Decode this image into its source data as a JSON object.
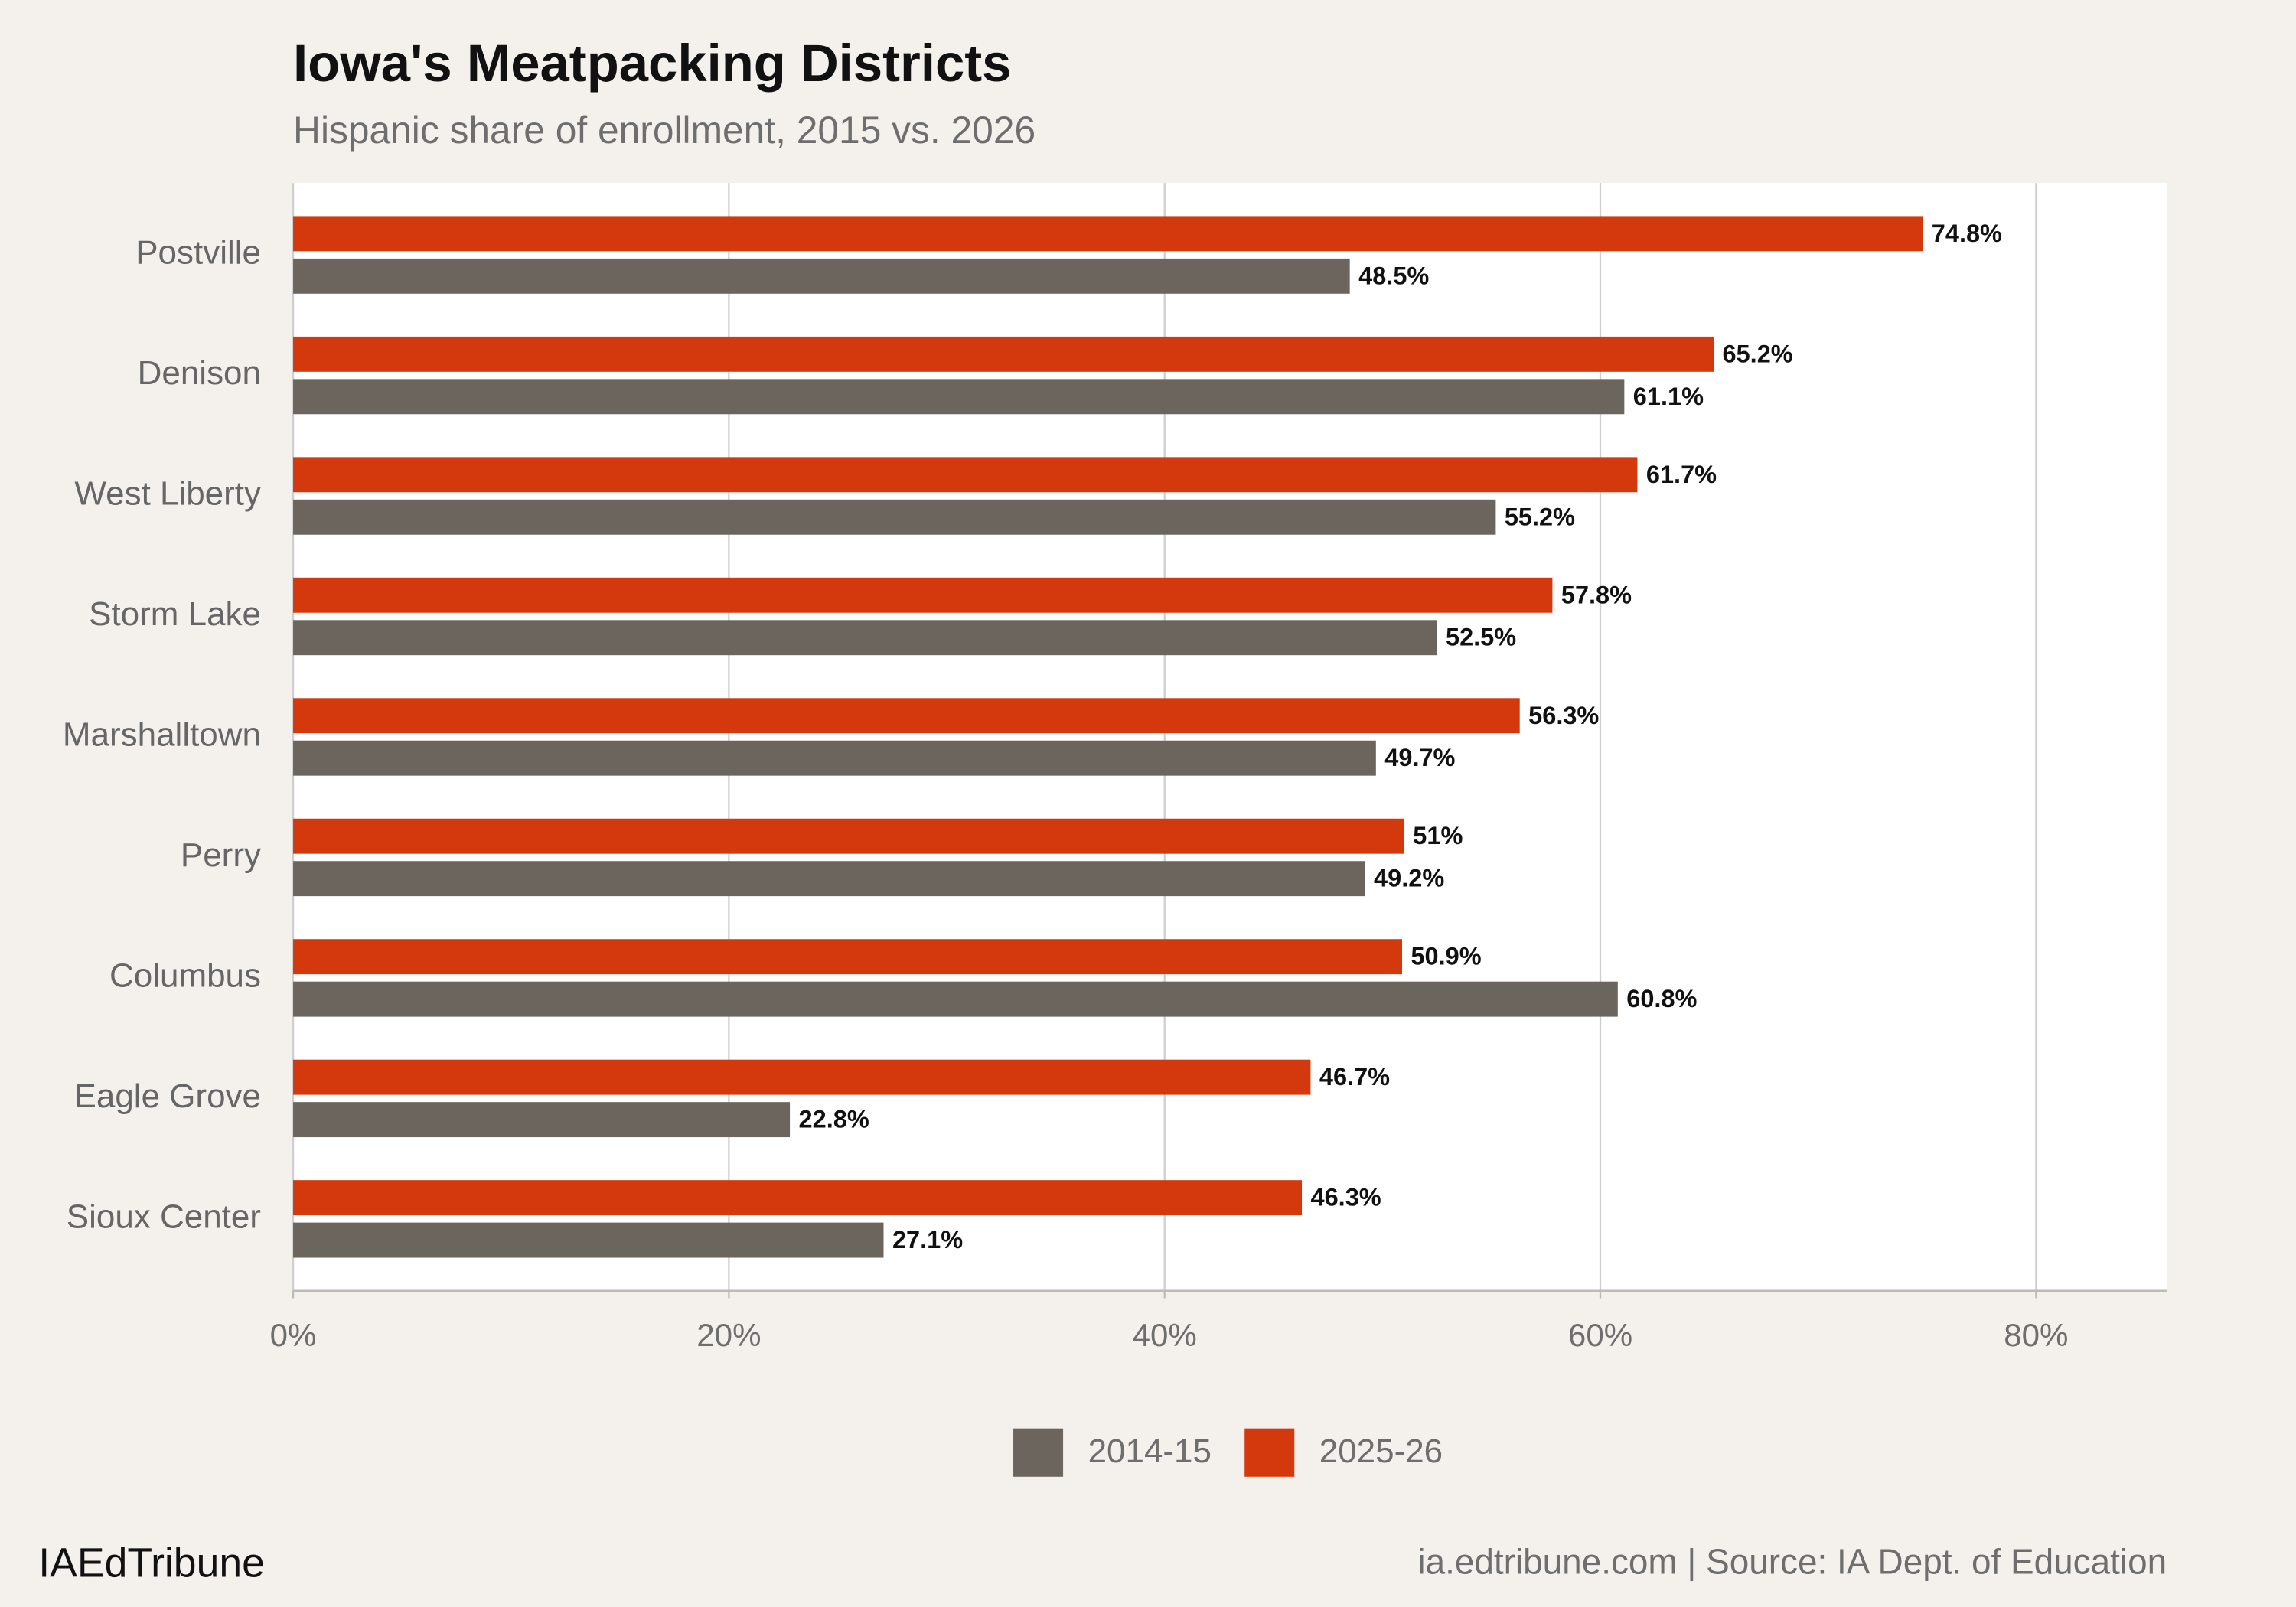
{
  "chart_data": {
    "type": "bar",
    "orientation": "horizontal",
    "title": "Iowa's Meatpacking Districts",
    "subtitle": "Hispanic share of enrollment, 2015 vs. 2026",
    "categories": [
      "Postville",
      "Denison",
      "West Liberty",
      "Storm Lake",
      "Marshalltown",
      "Perry",
      "Columbus",
      "Eagle Grove",
      "Sioux Center"
    ],
    "series": [
      {
        "name": "2025-26",
        "color": "#d4380d",
        "values": [
          74.8,
          65.2,
          61.7,
          57.8,
          56.3,
          51,
          50.9,
          46.7,
          46.3
        ],
        "value_labels": [
          "74.8%",
          "65.2%",
          "61.7%",
          "57.8%",
          "56.3%",
          "51%",
          "50.9%",
          "46.7%",
          "46.3%"
        ]
      },
      {
        "name": "2014-15",
        "color": "#6b655e",
        "values": [
          48.5,
          61.1,
          55.2,
          52.5,
          49.7,
          49.2,
          60.8,
          22.8,
          27.1
        ],
        "value_labels": [
          "48.5%",
          "61.1%",
          "55.2%",
          "52.5%",
          "49.7%",
          "49.2%",
          "60.8%",
          "22.8%",
          "27.1%"
        ]
      }
    ],
    "xlim": [
      0,
      86
    ],
    "xticks": [
      {
        "value": 0,
        "label": "0%"
      },
      {
        "value": 20,
        "label": "20%"
      },
      {
        "value": 40,
        "label": "40%"
      },
      {
        "value": 60,
        "label": "60%"
      },
      {
        "value": 80,
        "label": "80%"
      }
    ],
    "grid": true,
    "legend_position": "bottom",
    "footer_left": "IAEdTribune",
    "footer_right": "ia.edtribune.com | Source: IA Dept. of Education"
  }
}
